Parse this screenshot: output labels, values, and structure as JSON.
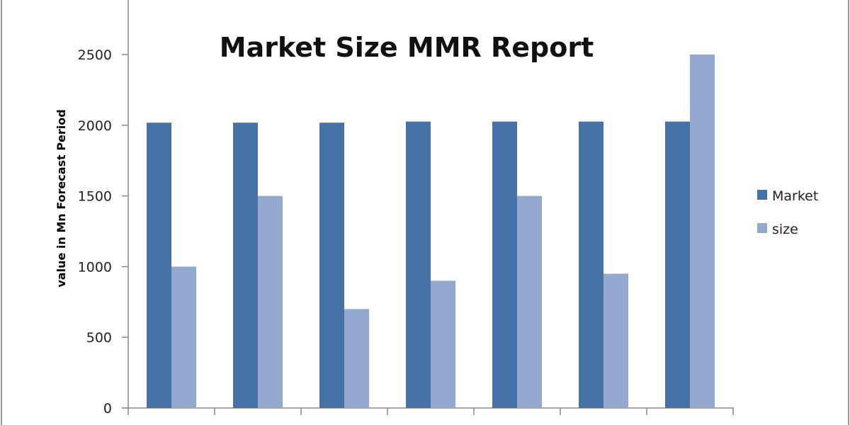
{
  "chart_data": {
    "type": "bar",
    "title": "Market Size MMR Report",
    "xlabel": "",
    "ylabel": "value in Mn  Forecast  Period",
    "ylim": [
      0,
      2500
    ],
    "yticks": [
      0,
      500,
      1000,
      1500,
      2000,
      2500
    ],
    "categories": [
      "",
      "",
      "",
      "",
      "",
      "",
      ""
    ],
    "grid": false,
    "legend_position": "right",
    "series": [
      {
        "name": "Market",
        "color": "#4572A7",
        "values": [
          2018,
          2018,
          2018,
          2026,
          2026,
          2026,
          2026
        ]
      },
      {
        "name": "size",
        "color": "#93A9CF",
        "values": [
          1000,
          1500,
          700,
          900,
          1500,
          950,
          2500
        ]
      }
    ]
  }
}
